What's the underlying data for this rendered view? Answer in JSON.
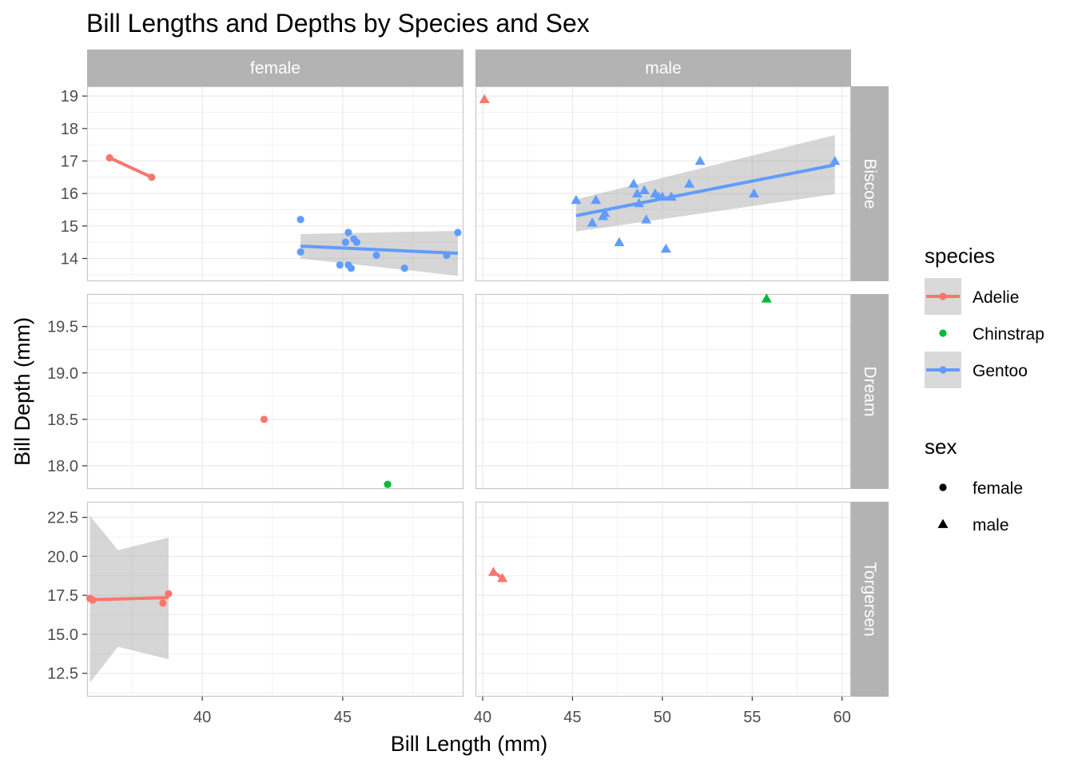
{
  "chart_data": {
    "type": "scatter",
    "title": "Bill Lengths and Depths by Species and Sex",
    "xlabel": "Bill Length (mm)",
    "ylabel": "Bill Depth (mm)",
    "facet_cols": [
      "female",
      "male"
    ],
    "facet_rows": [
      "Biscoe",
      "Dream",
      "Torgersen"
    ],
    "x_axes": [
      {
        "col": "female",
        "xlim": [
          35.9,
          49.3
        ],
        "ticks": [
          40,
          45
        ]
      },
      {
        "col": "male",
        "xlim": [
          39.6,
          60.5
        ],
        "ticks": [
          40,
          45,
          50,
          55,
          60
        ]
      }
    ],
    "y_axes": [
      {
        "row": "Biscoe",
        "ylim": [
          13.3,
          19.3
        ],
        "ticks": [
          14,
          15,
          16,
          17,
          18,
          19
        ]
      },
      {
        "row": "Dream",
        "ylim": [
          17.75,
          19.85
        ],
        "ticks": [
          18.0,
          18.5,
          19.0,
          19.5
        ]
      },
      {
        "row": "Torgersen",
        "ylim": [
          11.0,
          23.5
        ],
        "ticks": [
          12.5,
          15.0,
          17.5,
          20.0,
          22.5
        ]
      }
    ],
    "colors": {
      "Adelie": "#F8766D",
      "Chinstrap": "#00BA38",
      "Gentoo": "#619CFF"
    },
    "panels": [
      {
        "col": "female",
        "row": "Biscoe",
        "points": [
          {
            "species": "Adelie",
            "x": 36.7,
            "y": 17.1
          },
          {
            "species": "Adelie",
            "x": 38.2,
            "y": 16.5
          },
          {
            "species": "Gentoo",
            "x": 43.5,
            "y": 15.2
          },
          {
            "species": "Gentoo",
            "x": 43.5,
            "y": 14.2
          },
          {
            "species": "Gentoo",
            "x": 44.9,
            "y": 13.8
          },
          {
            "species": "Gentoo",
            "x": 45.1,
            "y": 14.5
          },
          {
            "species": "Gentoo",
            "x": 45.2,
            "y": 14.8
          },
          {
            "species": "Gentoo",
            "x": 45.2,
            "y": 13.8
          },
          {
            "species": "Gentoo",
            "x": 45.3,
            "y": 13.7
          },
          {
            "species": "Gentoo",
            "x": 45.4,
            "y": 14.6
          },
          {
            "species": "Gentoo",
            "x": 45.5,
            "y": 14.5
          },
          {
            "species": "Gentoo",
            "x": 46.2,
            "y": 14.1
          },
          {
            "species": "Gentoo",
            "x": 47.2,
            "y": 13.7
          },
          {
            "species": "Gentoo",
            "x": 48.7,
            "y": 14.1
          },
          {
            "species": "Gentoo",
            "x": 49.1,
            "y": 14.8
          }
        ],
        "fits": [
          {
            "species": "Adelie",
            "x": [
              36.7,
              38.2
            ],
            "y": [
              17.1,
              16.5
            ]
          },
          {
            "species": "Gentoo",
            "x": [
              43.5,
              49.1
            ],
            "y": [
              14.38,
              14.16
            ],
            "band_upper": [
              14.75,
              14.85
            ],
            "band_lower": [
              14.0,
              13.47
            ]
          }
        ]
      },
      {
        "col": "male",
        "row": "Biscoe",
        "points": [
          {
            "species": "Adelie",
            "x": 40.1,
            "y": 18.9
          },
          {
            "species": "Gentoo",
            "x": 45.2,
            "y": 15.8
          },
          {
            "species": "Gentoo",
            "x": 46.1,
            "y": 15.1
          },
          {
            "species": "Gentoo",
            "x": 46.3,
            "y": 15.8
          },
          {
            "species": "Gentoo",
            "x": 46.7,
            "y": 15.3
          },
          {
            "species": "Gentoo",
            "x": 46.8,
            "y": 15.4
          },
          {
            "species": "Gentoo",
            "x": 47.6,
            "y": 14.5
          },
          {
            "species": "Gentoo",
            "x": 48.4,
            "y": 16.3
          },
          {
            "species": "Gentoo",
            "x": 48.6,
            "y": 16.0
          },
          {
            "species": "Gentoo",
            "x": 48.7,
            "y": 15.7
          },
          {
            "species": "Gentoo",
            "x": 49.0,
            "y": 16.1
          },
          {
            "species": "Gentoo",
            "x": 49.1,
            "y": 15.2
          },
          {
            "species": "Gentoo",
            "x": 49.6,
            "y": 16.0
          },
          {
            "species": "Gentoo",
            "x": 49.8,
            "y": 15.9
          },
          {
            "species": "Gentoo",
            "x": 50.0,
            "y": 15.9
          },
          {
            "species": "Gentoo",
            "x": 50.2,
            "y": 14.3
          },
          {
            "species": "Gentoo",
            "x": 50.5,
            "y": 15.9
          },
          {
            "species": "Gentoo",
            "x": 51.5,
            "y": 16.3
          },
          {
            "species": "Gentoo",
            "x": 52.1,
            "y": 17.0
          },
          {
            "species": "Gentoo",
            "x": 55.1,
            "y": 16.0
          },
          {
            "species": "Gentoo",
            "x": 59.6,
            "y": 17.0
          }
        ],
        "fits": [
          {
            "species": "Gentoo",
            "x": [
              45.2,
              59.6
            ],
            "y": [
              15.32,
              16.88
            ],
            "band_upper": [
              15.82,
              17.8
            ],
            "band_lower": [
              14.83,
              15.98
            ]
          }
        ]
      },
      {
        "col": "female",
        "row": "Dream",
        "points": [
          {
            "species": "Adelie",
            "x": 42.2,
            "y": 18.5
          },
          {
            "species": "Chinstrap",
            "x": 46.6,
            "y": 17.8
          }
        ],
        "fits": []
      },
      {
        "col": "male",
        "row": "Dream",
        "points": [
          {
            "species": "Chinstrap",
            "x": 55.8,
            "y": 19.8
          }
        ],
        "fits": []
      },
      {
        "col": "female",
        "row": "Torgersen",
        "points": [
          {
            "species": "Adelie",
            "x": 36.0,
            "y": 17.3
          },
          {
            "species": "Adelie",
            "x": 36.1,
            "y": 17.2
          },
          {
            "species": "Adelie",
            "x": 38.6,
            "y": 17.0
          },
          {
            "species": "Adelie",
            "x": 38.8,
            "y": 17.6
          }
        ],
        "fits": [
          {
            "species": "Adelie",
            "x": [
              36.0,
              37.0,
              38.8
            ],
            "y": [
              17.22,
              17.26,
              17.35
            ],
            "band_upper": [
              22.6,
              20.4,
              21.2
            ],
            "band_lower": [
              11.9,
              14.2,
              13.4
            ]
          }
        ]
      },
      {
        "col": "male",
        "row": "Torgersen",
        "points": [
          {
            "species": "Adelie",
            "x": 40.6,
            "y": 19.0
          },
          {
            "species": "Adelie",
            "x": 41.1,
            "y": 18.6
          }
        ],
        "fits": [
          {
            "species": "Adelie",
            "x": [
              40.6,
              41.1
            ],
            "y": [
              19.0,
              18.6
            ]
          }
        ]
      }
    ],
    "legend": {
      "placement": "right",
      "species_title": "species",
      "species": [
        "Adelie",
        "Chinstrap",
        "Gentoo"
      ],
      "sex_title": "sex",
      "sex": [
        "female",
        "male"
      ]
    }
  }
}
